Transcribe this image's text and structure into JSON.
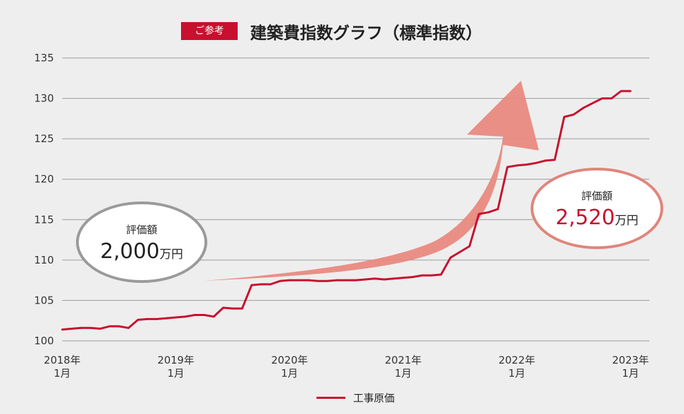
{
  "header": {
    "badge": "ご参考",
    "title": "建築費指数グラフ（標準指数）"
  },
  "legend": {
    "label": "工事原価"
  },
  "callouts": {
    "left": {
      "label": "評価額",
      "value": "2,000",
      "unit": "万円"
    },
    "right": {
      "label": "評価額",
      "value": "2,520",
      "unit": "万円"
    }
  },
  "colors": {
    "series": "#c8102e",
    "arrow": "#e8897f",
    "left_bubble_border": "#9a9a9a",
    "right_bubble_border": "#e0857b"
  },
  "chart_data": {
    "type": "line",
    "title": "建築費指数グラフ（標準指数）",
    "ylim": [
      100,
      135
    ],
    "yticks": [
      100,
      105,
      110,
      115,
      120,
      125,
      130,
      135
    ],
    "xlim": [
      "2018-01",
      "2023-03"
    ],
    "xticks": [
      {
        "x": "2018-01",
        "label": "2018年\n1月"
      },
      {
        "x": "2019-01",
        "label": "2019年\n1月"
      },
      {
        "x": "2020-01",
        "label": "2020年\n1月"
      },
      {
        "x": "2021-01",
        "label": "2021年\n1月"
      },
      {
        "x": "2022-01",
        "label": "2022年\n1月"
      },
      {
        "x": "2023-01",
        "label": "2023年\n1月"
      }
    ],
    "grid": true,
    "legend_position": "bottom-center",
    "series": [
      {
        "name": "工事原価",
        "points": [
          [
            "2018-01",
            101.4
          ],
          [
            "2018-02",
            101.5
          ],
          [
            "2018-03",
            101.6
          ],
          [
            "2018-04",
            101.6
          ],
          [
            "2018-05",
            101.5
          ],
          [
            "2018-06",
            101.8
          ],
          [
            "2018-07",
            101.8
          ],
          [
            "2018-08",
            101.6
          ],
          [
            "2018-09",
            102.6
          ],
          [
            "2018-10",
            102.7
          ],
          [
            "2018-11",
            102.7
          ],
          [
            "2018-12",
            102.8
          ],
          [
            "2019-01",
            102.9
          ],
          [
            "2019-02",
            103.0
          ],
          [
            "2019-03",
            103.2
          ],
          [
            "2019-04",
            103.2
          ],
          [
            "2019-05",
            103.0
          ],
          [
            "2019-06",
            104.1
          ],
          [
            "2019-07",
            104.0
          ],
          [
            "2019-08",
            104.0
          ],
          [
            "2019-09",
            106.9
          ],
          [
            "2019-10",
            107.0
          ],
          [
            "2019-11",
            107.0
          ],
          [
            "2019-12",
            107.4
          ],
          [
            "2020-01",
            107.5
          ],
          [
            "2020-02",
            107.5
          ],
          [
            "2020-03",
            107.5
          ],
          [
            "2020-04",
            107.4
          ],
          [
            "2020-05",
            107.4
          ],
          [
            "2020-06",
            107.5
          ],
          [
            "2020-07",
            107.5
          ],
          [
            "2020-08",
            107.5
          ],
          [
            "2020-09",
            107.6
          ],
          [
            "2020-10",
            107.7
          ],
          [
            "2020-11",
            107.6
          ],
          [
            "2020-12",
            107.7
          ],
          [
            "2021-01",
            107.8
          ],
          [
            "2021-02",
            107.9
          ],
          [
            "2021-03",
            108.1
          ],
          [
            "2021-04",
            108.1
          ],
          [
            "2021-05",
            108.2
          ],
          [
            "2021-06",
            110.3
          ],
          [
            "2021-07",
            111.0
          ],
          [
            "2021-08",
            111.7
          ],
          [
            "2021-09",
            115.7
          ],
          [
            "2021-10",
            115.9
          ],
          [
            "2021-11",
            116.3
          ],
          [
            "2021-12",
            121.5
          ],
          [
            "2022-01",
            121.7
          ],
          [
            "2022-02",
            121.8
          ],
          [
            "2022-03",
            122.0
          ],
          [
            "2022-04",
            122.3
          ],
          [
            "2022-05",
            122.4
          ],
          [
            "2022-06",
            127.7
          ],
          [
            "2022-07",
            128.0
          ],
          [
            "2022-08",
            128.8
          ],
          [
            "2022-09",
            129.4
          ],
          [
            "2022-10",
            130.0
          ],
          [
            "2022-11",
            130.0
          ],
          [
            "2022-12",
            130.9
          ],
          [
            "2023-01",
            130.9
          ]
        ]
      }
    ]
  }
}
